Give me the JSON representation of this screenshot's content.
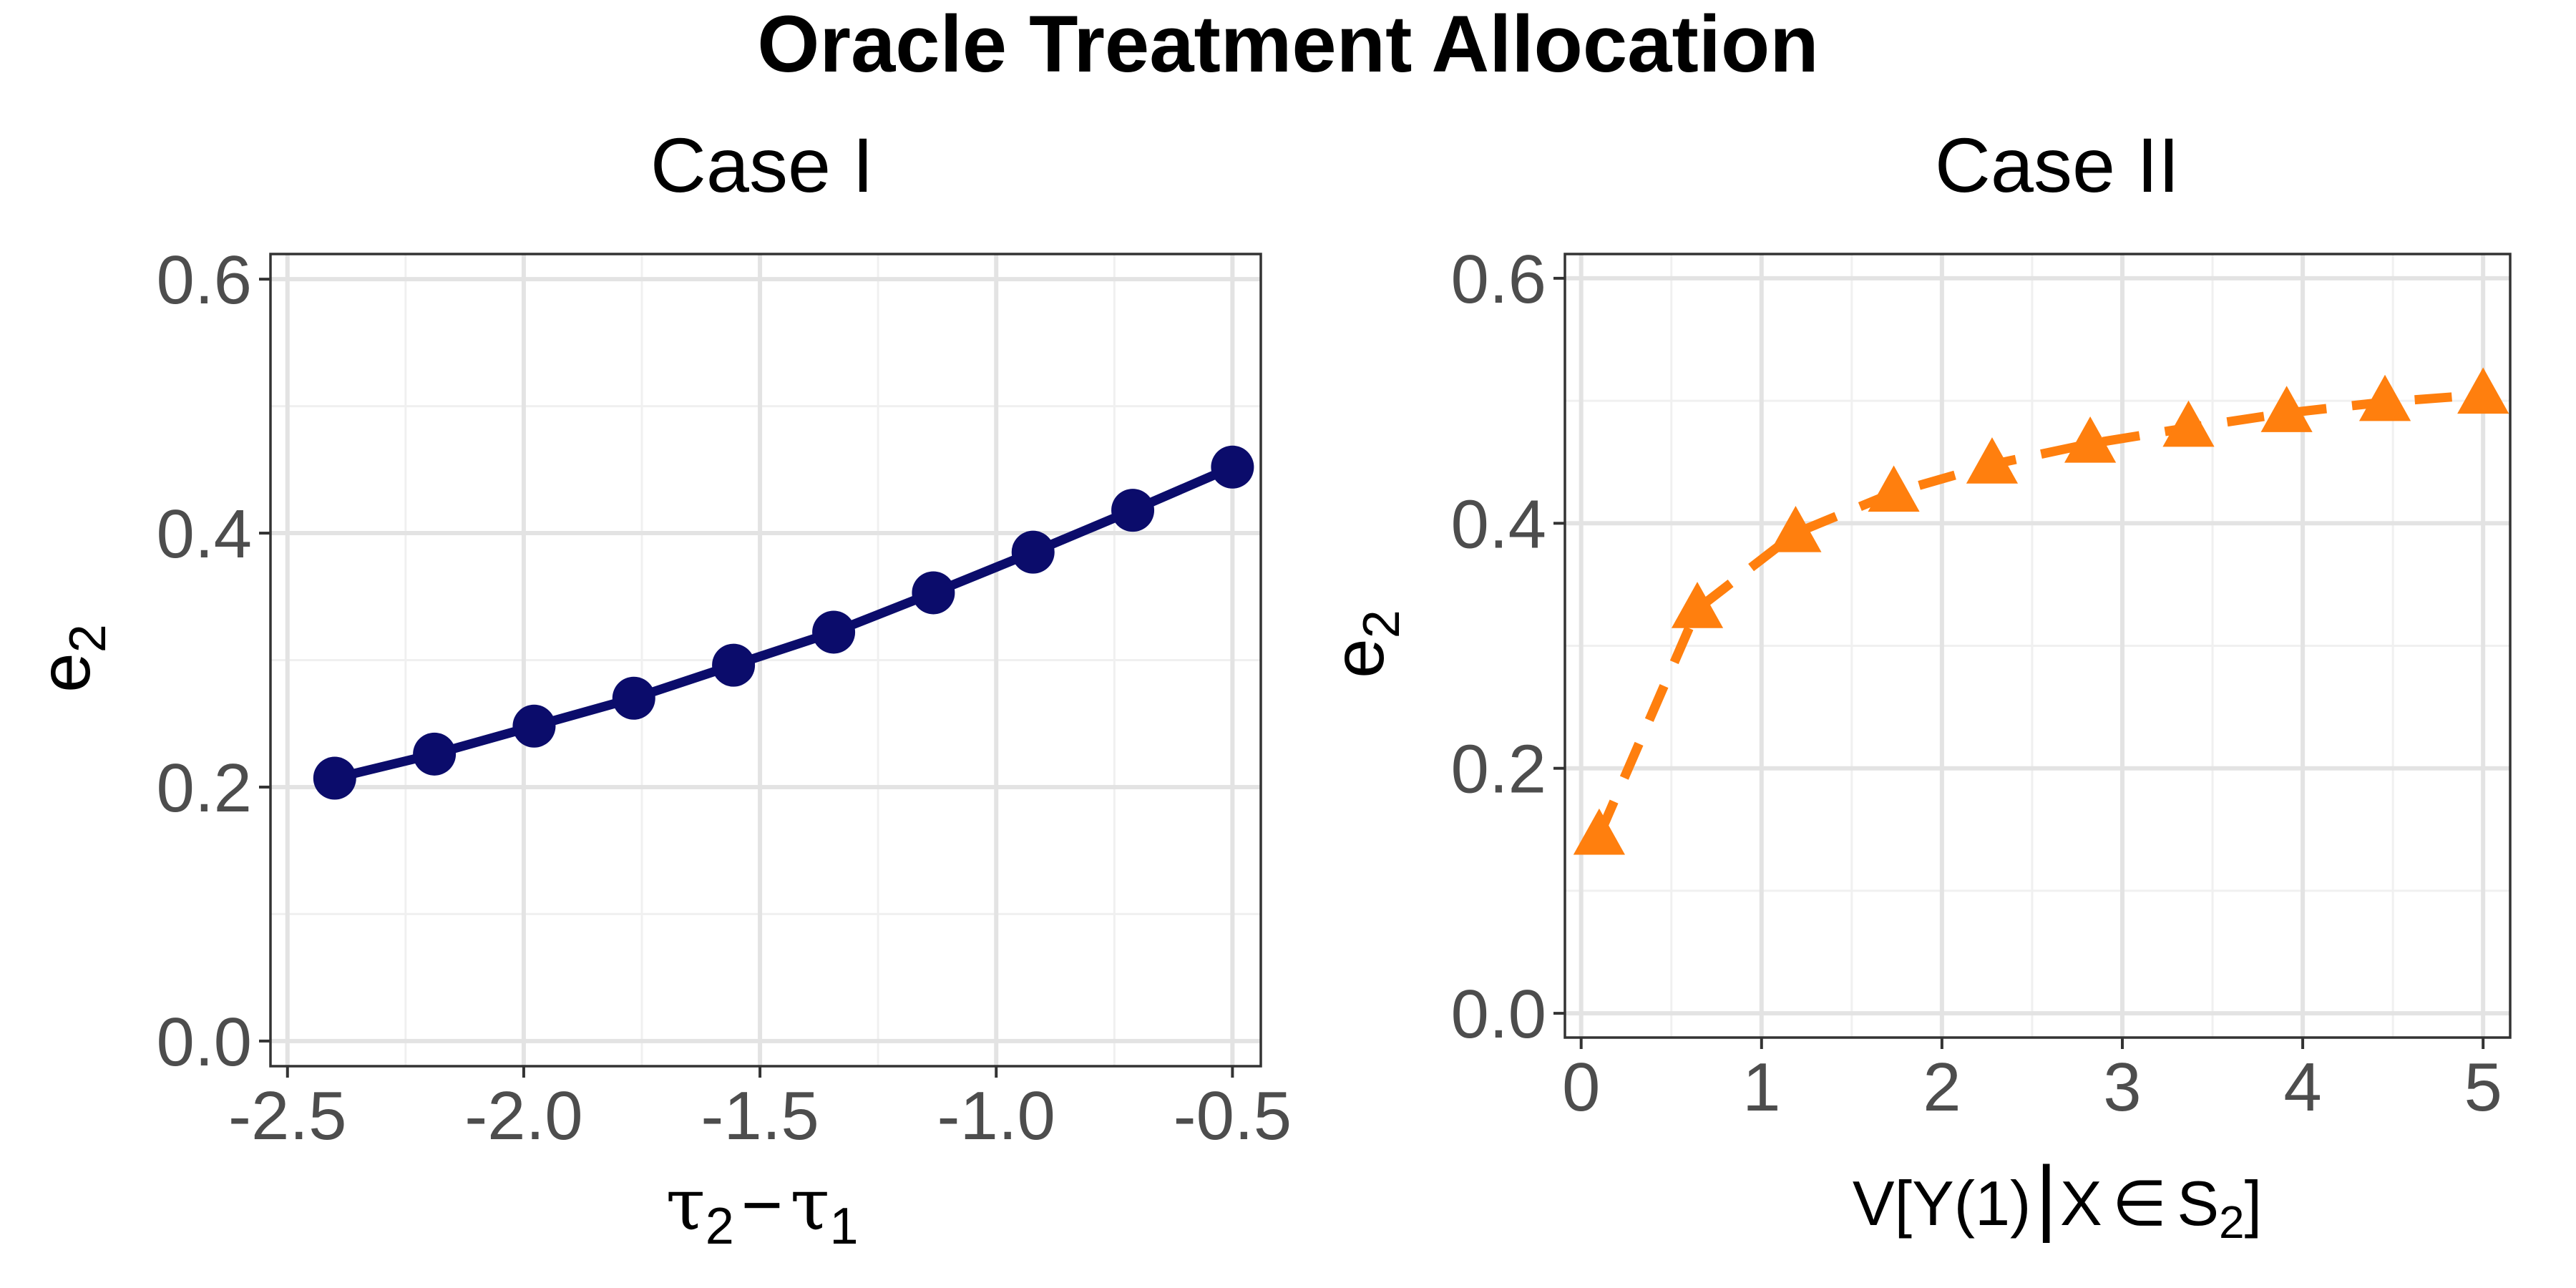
{
  "figure_title": "Oracle Treatment Allocation",
  "colors": {
    "case1": "#0b0c6b",
    "case2": "#ff7f0e",
    "grid_major": "#e3e3e3",
    "grid_minor": "#f0f0f0",
    "panel_border": "#333333"
  },
  "chart_data": [
    {
      "type": "line",
      "title": "Case I",
      "marker": "circle",
      "line_style": "solid",
      "color": "#0b0c6b",
      "xlabel": {
        "main": "τ",
        "sub1": "2",
        "minus": "−",
        "main2": "τ",
        "sub2": "1"
      },
      "ylabel": {
        "main": "e",
        "sub": "2"
      },
      "xlim": [
        -2.5,
        -0.5
      ],
      "ylim": [
        0.0,
        0.6
      ],
      "xticks": [
        -2.5,
        -2.0,
        -1.5,
        -1.0,
        -0.5
      ],
      "xtick_labels": [
        "-2.5",
        "-2.0",
        "-1.5",
        "-1.0",
        "-0.5"
      ],
      "yticks": [
        0.0,
        0.2,
        0.4,
        0.6
      ],
      "ytick_labels": [
        "0.0",
        "0.2",
        "0.4",
        "0.6"
      ],
      "x": [
        -2.4,
        -2.189,
        -1.978,
        -1.767,
        -1.556,
        -1.344,
        -1.133,
        -0.922,
        -0.711,
        -0.5
      ],
      "y": [
        0.207,
        0.226,
        0.248,
        0.27,
        0.296,
        0.322,
        0.353,
        0.385,
        0.418,
        0.452
      ]
    },
    {
      "type": "line",
      "title": "Case II",
      "marker": "triangle",
      "line_style": "dashed",
      "color": "#ff7f0e",
      "xlabel": {
        "prefix": "V[Y(1)",
        "middle": "X",
        "elem": "∈",
        "set": "S",
        "sub": "2",
        "suffix": "]"
      },
      "ylabel": {
        "main": "e",
        "sub": "2"
      },
      "xlim": [
        0,
        5
      ],
      "ylim": [
        0.0,
        0.6
      ],
      "xticks": [
        0,
        1,
        2,
        3,
        4,
        5
      ],
      "xtick_labels": [
        "0",
        "1",
        "2",
        "3",
        "4",
        "5"
      ],
      "yticks": [
        0.0,
        0.2,
        0.4,
        0.6
      ],
      "ytick_labels": [
        "0.0",
        "0.2",
        "0.4",
        "0.6"
      ],
      "x": [
        0.1,
        0.644,
        1.189,
        1.733,
        2.278,
        2.822,
        3.367,
        3.911,
        4.456,
        5.0
      ],
      "y": [
        0.145,
        0.33,
        0.392,
        0.425,
        0.448,
        0.465,
        0.478,
        0.49,
        0.499,
        0.505
      ]
    }
  ]
}
